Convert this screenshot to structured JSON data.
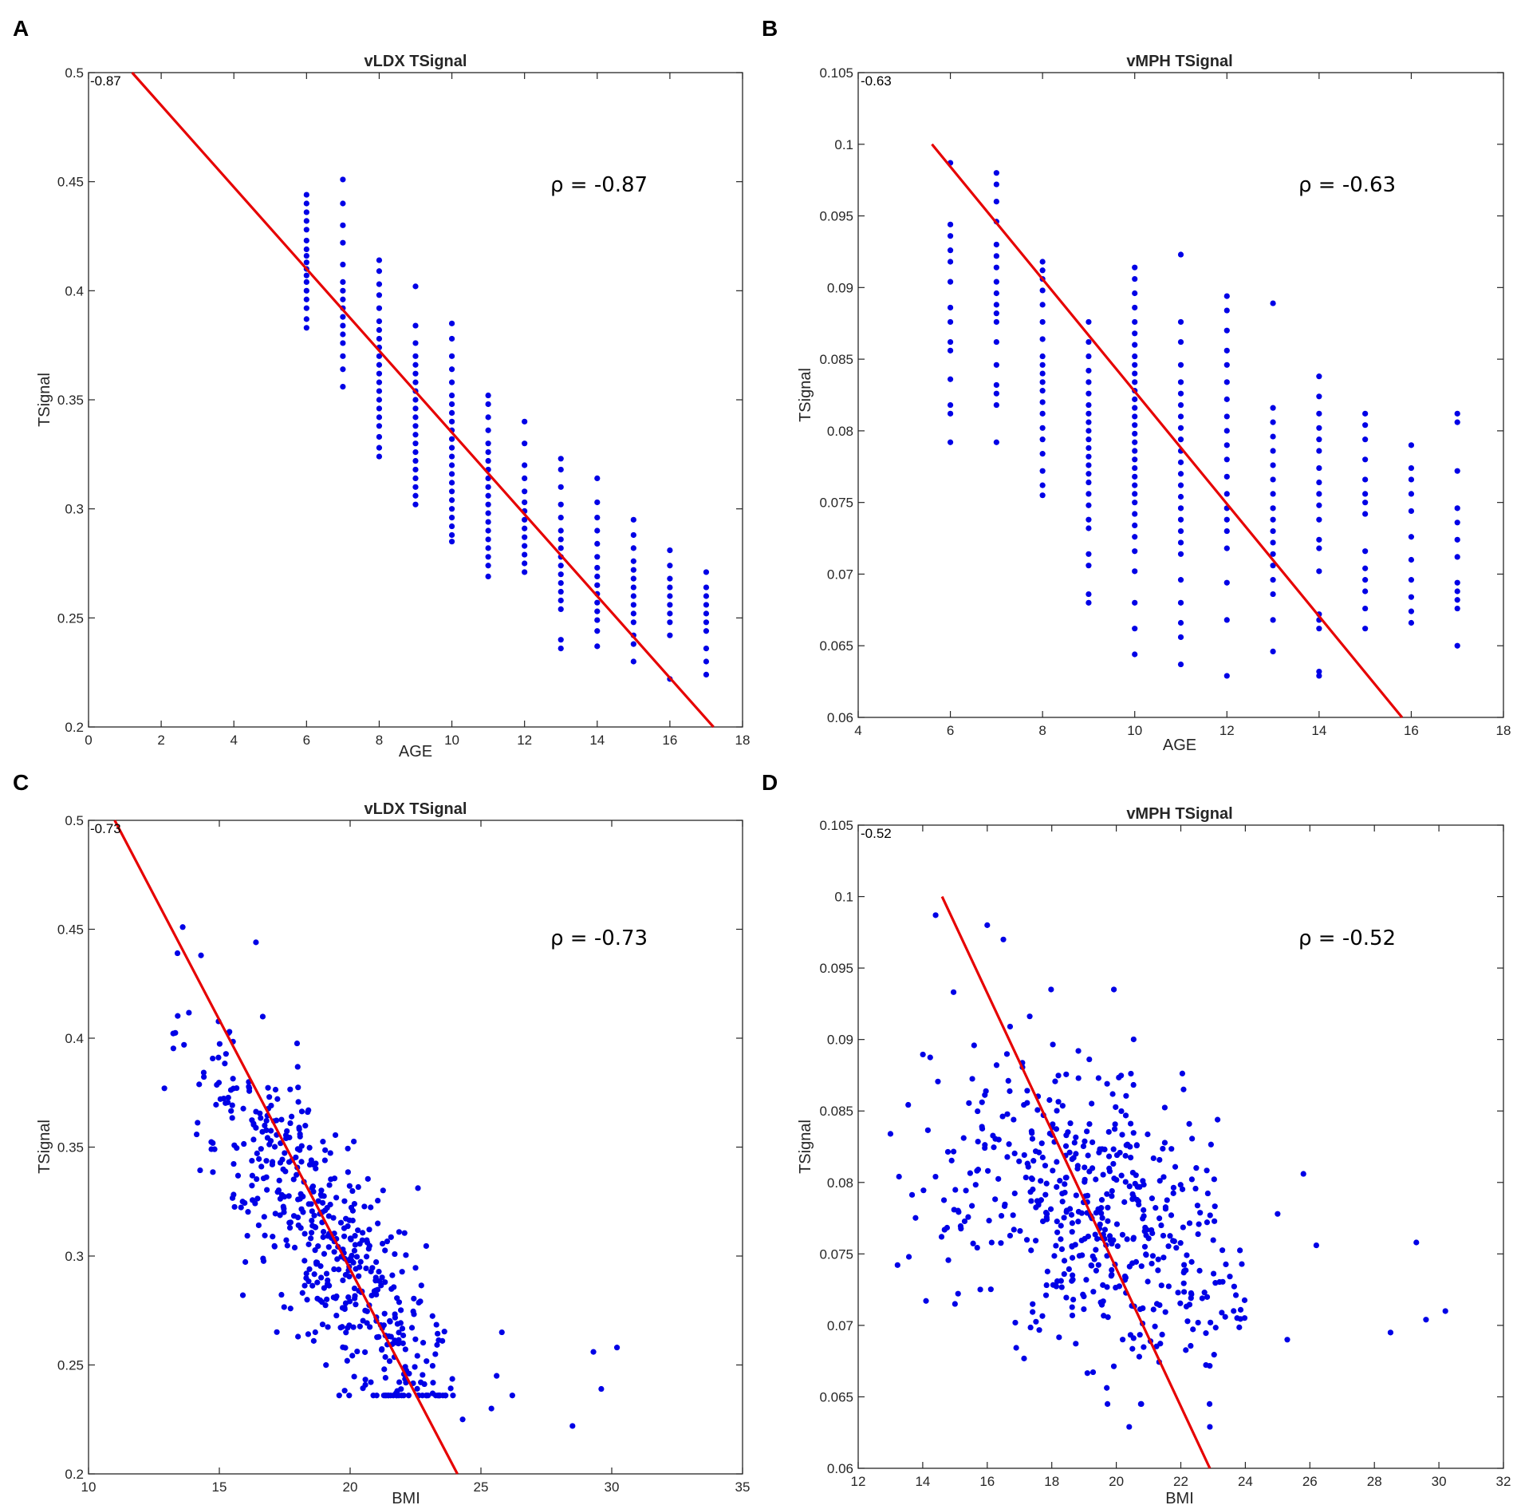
{
  "chart_data": [
    {
      "panel": "A",
      "type": "scatter",
      "title": "vLDX TSignal",
      "xlabel": "AGE",
      "ylabel": "TSignal",
      "xlim": [
        0,
        18
      ],
      "ylim": [
        0.2,
        0.5
      ],
      "xticks": [
        "0",
        "2",
        "4",
        "6",
        "8",
        "10",
        "12",
        "14",
        "16",
        "18"
      ],
      "yticks": [
        "0.2",
        "0.25",
        "0.3",
        "0.35",
        "0.4",
        "0.45",
        "0.5"
      ],
      "corner_label": "-0.87",
      "annotation": "ρ = -0.87",
      "points_color": "#0000e6",
      "fit_color": "#e60000",
      "fit_line": {
        "x": [
          1.2,
          17.2
        ],
        "y": [
          0.5,
          0.2
        ]
      },
      "groups": [
        {
          "x": 6,
          "values": [
            0.383,
            0.387,
            0.392,
            0.396,
            0.4,
            0.404,
            0.407,
            0.41,
            0.413,
            0.416,
            0.419,
            0.423,
            0.428,
            0.432,
            0.436,
            0.44,
            0.444
          ]
        },
        {
          "x": 7,
          "values": [
            0.356,
            0.364,
            0.37,
            0.376,
            0.38,
            0.384,
            0.388,
            0.392,
            0.396,
            0.4,
            0.404,
            0.412,
            0.422,
            0.43,
            0.44,
            0.451
          ]
        },
        {
          "x": 8,
          "values": [
            0.324,
            0.328,
            0.333,
            0.338,
            0.342,
            0.346,
            0.35,
            0.354,
            0.358,
            0.362,
            0.366,
            0.37,
            0.374,
            0.378,
            0.382,
            0.386,
            0.392,
            0.398,
            0.403,
            0.409,
            0.414
          ]
        },
        {
          "x": 9,
          "values": [
            0.302,
            0.306,
            0.31,
            0.314,
            0.318,
            0.322,
            0.326,
            0.33,
            0.334,
            0.338,
            0.342,
            0.346,
            0.35,
            0.354,
            0.358,
            0.362,
            0.366,
            0.37,
            0.376,
            0.384,
            0.402
          ]
        },
        {
          "x": 10,
          "values": [
            0.285,
            0.288,
            0.292,
            0.296,
            0.3,
            0.304,
            0.308,
            0.312,
            0.316,
            0.32,
            0.324,
            0.328,
            0.332,
            0.336,
            0.34,
            0.344,
            0.348,
            0.352,
            0.358,
            0.364,
            0.37,
            0.378,
            0.385
          ]
        },
        {
          "x": 11,
          "values": [
            0.269,
            0.274,
            0.278,
            0.282,
            0.286,
            0.29,
            0.294,
            0.298,
            0.302,
            0.306,
            0.31,
            0.314,
            0.318,
            0.322,
            0.326,
            0.33,
            0.336,
            0.342,
            0.348,
            0.352
          ]
        },
        {
          "x": 12,
          "values": [
            0.271,
            0.275,
            0.279,
            0.283,
            0.287,
            0.291,
            0.295,
            0.299,
            0.303,
            0.308,
            0.314,
            0.32,
            0.33,
            0.34
          ]
        },
        {
          "x": 13,
          "values": [
            0.236,
            0.24,
            0.254,
            0.258,
            0.262,
            0.266,
            0.27,
            0.274,
            0.278,
            0.282,
            0.286,
            0.29,
            0.296,
            0.302,
            0.31,
            0.318,
            0.323
          ]
        },
        {
          "x": 14,
          "values": [
            0.237,
            0.244,
            0.249,
            0.253,
            0.257,
            0.261,
            0.265,
            0.269,
            0.273,
            0.278,
            0.284,
            0.29,
            0.296,
            0.303,
            0.314
          ]
        },
        {
          "x": 15,
          "values": [
            0.23,
            0.238,
            0.242,
            0.248,
            0.252,
            0.256,
            0.26,
            0.264,
            0.268,
            0.272,
            0.276,
            0.282,
            0.288,
            0.295
          ]
        },
        {
          "x": 16,
          "values": [
            0.222,
            0.242,
            0.248,
            0.252,
            0.256,
            0.26,
            0.264,
            0.268,
            0.274,
            0.281
          ]
        },
        {
          "x": 17,
          "values": [
            0.224,
            0.23,
            0.236,
            0.244,
            0.248,
            0.252,
            0.256,
            0.26,
            0.264,
            0.271
          ]
        }
      ]
    },
    {
      "panel": "B",
      "type": "scatter",
      "title": "vMPH TSignal",
      "xlabel": "AGE",
      "ylabel": "TSignal",
      "xlim": [
        4,
        18
      ],
      "ylim": [
        0.06,
        0.105
      ],
      "xticks": [
        "4",
        "6",
        "8",
        "10",
        "12",
        "14",
        "16",
        "18"
      ],
      "yticks": [
        "0.06",
        "0.065",
        "0.07",
        "0.075",
        "0.08",
        "0.085",
        "0.09",
        "0.095",
        "0.1",
        "0.105"
      ],
      "corner_label": "-0.63",
      "annotation": "ρ = -0.63",
      "points_color": "#0000e6",
      "fit_color": "#e60000",
      "fit_line": {
        "x": [
          5.6,
          15.8
        ],
        "y": [
          0.1,
          0.06
        ]
      },
      "groups": [
        {
          "x": 6,
          "values": [
            0.0792,
            0.0812,
            0.0818,
            0.0836,
            0.0856,
            0.0862,
            0.0876,
            0.0886,
            0.0904,
            0.0918,
            0.0926,
            0.0936,
            0.0944,
            0.0987
          ]
        },
        {
          "x": 7,
          "values": [
            0.0792,
            0.0818,
            0.0826,
            0.0832,
            0.0846,
            0.0862,
            0.0876,
            0.0882,
            0.0888,
            0.0896,
            0.0904,
            0.0914,
            0.0922,
            0.093,
            0.0946,
            0.096,
            0.0972,
            0.098
          ]
        },
        {
          "x": 8,
          "values": [
            0.0755,
            0.0762,
            0.0772,
            0.0784,
            0.0794,
            0.0802,
            0.0812,
            0.082,
            0.0828,
            0.0834,
            0.084,
            0.0846,
            0.0852,
            0.0864,
            0.0876,
            0.0888,
            0.0898,
            0.0906,
            0.0912,
            0.0918
          ]
        },
        {
          "x": 9,
          "values": [
            0.068,
            0.0686,
            0.0706,
            0.0714,
            0.0732,
            0.0738,
            0.0748,
            0.0756,
            0.0764,
            0.077,
            0.0776,
            0.0782,
            0.0788,
            0.0794,
            0.08,
            0.0806,
            0.0812,
            0.0818,
            0.0826,
            0.0834,
            0.0842,
            0.0852,
            0.0862,
            0.0876
          ]
        },
        {
          "x": 10,
          "values": [
            0.0644,
            0.0662,
            0.068,
            0.0702,
            0.0716,
            0.0726,
            0.0734,
            0.0742,
            0.075,
            0.0756,
            0.0762,
            0.0768,
            0.0774,
            0.078,
            0.0786,
            0.0792,
            0.0798,
            0.0804,
            0.081,
            0.0816,
            0.0822,
            0.0828,
            0.0834,
            0.084,
            0.0846,
            0.0852,
            0.086,
            0.0868,
            0.0876,
            0.0886,
            0.0896,
            0.0906,
            0.0914
          ]
        },
        {
          "x": 11,
          "values": [
            0.0637,
            0.0656,
            0.0666,
            0.068,
            0.0696,
            0.0714,
            0.0722,
            0.073,
            0.0738,
            0.0746,
            0.0754,
            0.0762,
            0.077,
            0.0778,
            0.0786,
            0.0794,
            0.0802,
            0.081,
            0.0818,
            0.0826,
            0.0834,
            0.0846,
            0.0862,
            0.0876,
            0.0923
          ]
        },
        {
          "x": 12,
          "values": [
            0.0629,
            0.0668,
            0.0694,
            0.0718,
            0.073,
            0.0738,
            0.0746,
            0.0756,
            0.0768,
            0.078,
            0.079,
            0.08,
            0.081,
            0.0822,
            0.0834,
            0.0846,
            0.0856,
            0.087,
            0.0884,
            0.0894
          ]
        },
        {
          "x": 13,
          "values": [
            0.0646,
            0.0668,
            0.0686,
            0.0696,
            0.0706,
            0.0714,
            0.0722,
            0.073,
            0.0738,
            0.0746,
            0.0756,
            0.0766,
            0.0776,
            0.0786,
            0.0796,
            0.0806,
            0.0816,
            0.0889
          ]
        },
        {
          "x": 14,
          "values": [
            0.0629,
            0.0632,
            0.0662,
            0.0668,
            0.0672,
            0.0702,
            0.0718,
            0.0724,
            0.0738,
            0.0748,
            0.0756,
            0.0764,
            0.0774,
            0.0786,
            0.0794,
            0.0802,
            0.0812,
            0.0824,
            0.0838
          ]
        },
        {
          "x": 15,
          "values": [
            0.0662,
            0.0676,
            0.0688,
            0.0696,
            0.0704,
            0.0716,
            0.0742,
            0.075,
            0.0756,
            0.0766,
            0.078,
            0.0794,
            0.0804,
            0.0812
          ]
        },
        {
          "x": 16,
          "values": [
            0.0666,
            0.0674,
            0.0684,
            0.0696,
            0.071,
            0.0726,
            0.0744,
            0.0756,
            0.0766,
            0.0774,
            0.079
          ]
        },
        {
          "x": 17,
          "values": [
            0.065,
            0.0676,
            0.0682,
            0.0688,
            0.0694,
            0.0712,
            0.0724,
            0.0736,
            0.0746,
            0.0772,
            0.0806,
            0.0812
          ]
        }
      ]
    },
    {
      "panel": "C",
      "type": "scatter",
      "title": "vLDX TSignal",
      "xlabel": "BMI",
      "ylabel": "TSignal",
      "xlim": [
        10,
        35
      ],
      "ylim": [
        0.2,
        0.5
      ],
      "xticks": [
        "10",
        "15",
        "20",
        "25",
        "30",
        "35"
      ],
      "yticks": [
        "0.2",
        "0.25",
        "0.3",
        "0.35",
        "0.4",
        "0.45",
        "0.5"
      ],
      "corner_label": "-0.73",
      "annotation": "ρ = -0.73",
      "points_color": "#0000e6",
      "fit_color": "#e60000",
      "fit_line": {
        "x": [
          11.0,
          24.1
        ],
        "y": [
          0.5,
          0.2
        ]
      },
      "x_range": [
        12.9,
        30.2
      ],
      "outliers": [
        {
          "x": 28.5,
          "y": 0.222
        },
        {
          "x": 29.3,
          "y": 0.256
        },
        {
          "x": 29.6,
          "y": 0.239
        },
        {
          "x": 30.2,
          "y": 0.258
        },
        {
          "x": 24.3,
          "y": 0.225
        },
        {
          "x": 25.8,
          "y": 0.265
        },
        {
          "x": 26.2,
          "y": 0.236
        },
        {
          "x": 25.4,
          "y": 0.23
        },
        {
          "x": 25.6,
          "y": 0.245
        },
        {
          "x": 13.4,
          "y": 0.439
        },
        {
          "x": 13.6,
          "y": 0.451
        },
        {
          "x": 14.3,
          "y": 0.438
        },
        {
          "x": 16.4,
          "y": 0.444
        },
        {
          "x": 12.9,
          "y": 0.377
        },
        {
          "x": 15.9,
          "y": 0.282
        }
      ]
    },
    {
      "panel": "D",
      "type": "scatter",
      "title": "vMPH TSignal",
      "xlabel": "BMI",
      "ylabel": "TSignal",
      "xlim": [
        12,
        32
      ],
      "ylim": [
        0.06,
        0.105
      ],
      "xticks": [
        "12",
        "14",
        "16",
        "18",
        "20",
        "22",
        "24",
        "26",
        "28",
        "30",
        "32"
      ],
      "yticks": [
        "0.06",
        "0.065",
        "0.07",
        "0.075",
        "0.08",
        "0.085",
        "0.09",
        "0.095",
        "0.1",
        "0.105"
      ],
      "corner_label": "-0.52",
      "annotation": "ρ = -0.52",
      "points_color": "#0000e6",
      "fit_color": "#e60000",
      "fit_line": {
        "x": [
          14.6,
          22.9
        ],
        "y": [
          0.1,
          0.06
        ]
      },
      "x_range": [
        12.9,
        30.2
      ],
      "outliers": [
        {
          "x": 28.5,
          "y": 0.0695
        },
        {
          "x": 29.3,
          "y": 0.0758
        },
        {
          "x": 29.6,
          "y": 0.0704
        },
        {
          "x": 30.2,
          "y": 0.071
        },
        {
          "x": 26.2,
          "y": 0.0756
        },
        {
          "x": 25.8,
          "y": 0.0806
        },
        {
          "x": 25.0,
          "y": 0.0778
        },
        {
          "x": 25.3,
          "y": 0.069
        },
        {
          "x": 14.4,
          "y": 0.0987
        },
        {
          "x": 16.0,
          "y": 0.098
        },
        {
          "x": 16.5,
          "y": 0.097
        },
        {
          "x": 20.4,
          "y": 0.0629
        },
        {
          "x": 22.9,
          "y": 0.0629
        },
        {
          "x": 13.0,
          "y": 0.0834
        },
        {
          "x": 15.0,
          "y": 0.0715
        }
      ]
    }
  ]
}
